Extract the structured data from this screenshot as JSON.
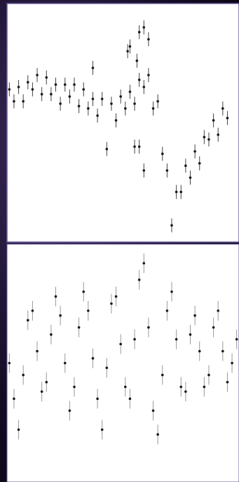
{
  "chart_data": [
    {
      "type": "scatter",
      "color": "#1a1a1a",
      "xlim": [
        0,
        100
      ],
      "ylim": [
        0,
        100
      ],
      "x": [
        1,
        3,
        5,
        7,
        9,
        11,
        13,
        15,
        17,
        19,
        21,
        23,
        25,
        27,
        29,
        31,
        33,
        35,
        37,
        39,
        41,
        43,
        45,
        47,
        49,
        51,
        53,
        55,
        57,
        59,
        61,
        63,
        65,
        67,
        69,
        71,
        73,
        75,
        77,
        79,
        81,
        83,
        85,
        87,
        89,
        91,
        93,
        95,
        53,
        57,
        59,
        61,
        56,
        52,
        37,
        55,
        57,
        59
      ],
      "values": [
        64,
        59,
        65,
        59,
        67,
        64,
        70,
        62,
        69,
        62,
        66,
        58,
        66,
        61,
        66,
        57,
        64,
        56,
        60,
        53,
        60,
        39,
        58,
        51,
        61,
        56,
        63,
        58,
        68,
        65,
        70,
        56,
        59,
        37,
        30,
        7,
        21,
        21,
        32,
        27,
        38,
        33,
        44,
        43,
        51,
        45,
        56,
        52,
        82,
        88,
        90,
        85,
        76,
        80,
        73,
        40,
        40,
        30
      ]
    },
    {
      "type": "scatter",
      "color": "#1a1a1a",
      "xlim": [
        0,
        100
      ],
      "ylim": [
        0,
        100
      ],
      "x": [
        1,
        3,
        5,
        7,
        9,
        11,
        13,
        15,
        17,
        19,
        21,
        23,
        25,
        27,
        29,
        31,
        33,
        35,
        37,
        39,
        41,
        43,
        45,
        47,
        49,
        51,
        53,
        55,
        57,
        59,
        61,
        63,
        65,
        67,
        69,
        71,
        73,
        75,
        77,
        79,
        81,
        83,
        85,
        87,
        89,
        91,
        93,
        95,
        97,
        99
      ],
      "values": [
        50,
        35,
        22,
        45,
        68,
        72,
        55,
        38,
        42,
        62,
        78,
        70,
        50,
        30,
        40,
        65,
        80,
        72,
        52,
        35,
        22,
        48,
        75,
        78,
        58,
        40,
        35,
        60,
        85,
        92,
        65,
        30,
        20,
        45,
        72,
        80,
        60,
        40,
        38,
        62,
        70,
        55,
        40,
        45,
        65,
        72,
        55,
        42,
        50,
        60
      ]
    }
  ]
}
